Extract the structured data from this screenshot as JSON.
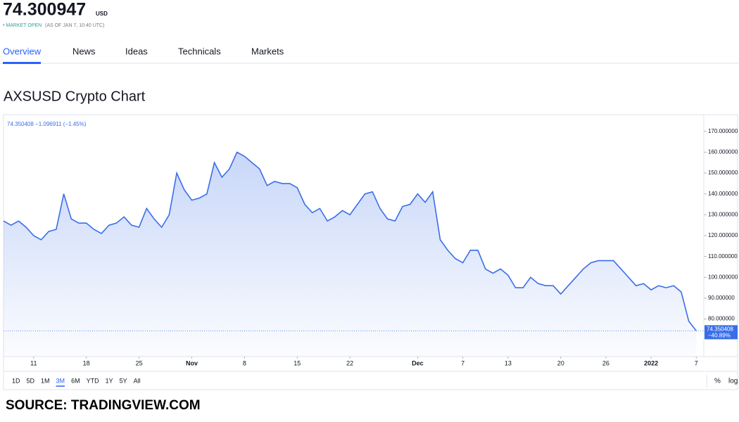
{
  "header": {
    "price": "74.300947",
    "currency": "USD",
    "status": "• MARKET OPEN",
    "as_of": "(AS OF JAN 7, 10:40 UTC)"
  },
  "tabs": [
    "Overview",
    "News",
    "Ideas",
    "Technicals",
    "Markets"
  ],
  "section_title": "AXSUSD Crypto Chart",
  "chart_data": {
    "type": "area",
    "legend": "74.350408 −1.096911 (−1.45%)",
    "color": "#3a6ee8",
    "values": [
      127,
      125,
      127,
      124,
      120,
      118,
      122,
      123,
      140,
      128,
      126,
      126,
      123,
      121,
      125,
      126,
      129,
      125,
      124,
      133,
      128,
      124,
      130,
      150,
      142,
      137,
      138,
      140,
      155,
      148,
      152,
      160,
      158,
      155,
      152,
      144,
      146,
      145,
      145,
      143,
      135,
      131,
      133,
      127,
      129,
      132,
      130,
      135,
      140,
      141,
      133,
      128,
      127,
      134,
      135,
      140,
      136,
      141,
      118,
      113,
      109,
      107,
      113,
      113,
      104,
      102,
      104,
      101,
      95,
      95,
      100,
      97,
      96,
      96,
      92,
      96,
      100,
      104,
      107,
      108,
      108,
      108,
      104,
      100,
      96,
      97,
      94,
      96,
      95,
      96,
      93,
      79,
      74.350408
    ],
    "last_label": "74.350408",
    "change_label": "−40.89%",
    "xlim": [
      0,
      93
    ],
    "xticks": [
      {
        "value": 4,
        "label": "11"
      },
      {
        "value": 11,
        "label": "18"
      },
      {
        "value": 18,
        "label": "25"
      },
      {
        "value": 25,
        "label": "Nov"
      },
      {
        "value": 32,
        "label": "8"
      },
      {
        "value": 39,
        "label": "15"
      },
      {
        "value": 46,
        "label": "22"
      },
      {
        "value": 55,
        "label": "Dec"
      },
      {
        "value": 61,
        "label": "7"
      },
      {
        "value": 67,
        "label": "13"
      },
      {
        "value": 74,
        "label": "20"
      },
      {
        "value": 80,
        "label": "26"
      },
      {
        "value": 86,
        "label": "2022"
      },
      {
        "value": 92,
        "label": "7"
      }
    ],
    "ylim": [
      62,
      178
    ],
    "yticks": [
      {
        "value": 80,
        "label": "80.000000"
      },
      {
        "value": 90,
        "label": "90.000000"
      },
      {
        "value": 100,
        "label": "100.000000"
      },
      {
        "value": 110,
        "label": "110.000000"
      },
      {
        "value": 120,
        "label": "120.000000"
      },
      {
        "value": 130,
        "label": "130.000000"
      },
      {
        "value": 140,
        "label": "140.000000"
      },
      {
        "value": 150,
        "label": "150.000000"
      },
      {
        "value": 160,
        "label": "160.000000"
      },
      {
        "value": 170,
        "label": "170.000000"
      }
    ]
  },
  "ranges": [
    "1D",
    "5D",
    "1M",
    "3M",
    "6M",
    "YTD",
    "1Y",
    "5Y",
    "All"
  ],
  "active_range": "3M",
  "scale_options": [
    "%",
    "log"
  ],
  "source": "SOURCE: TRADINGVIEW.COM"
}
